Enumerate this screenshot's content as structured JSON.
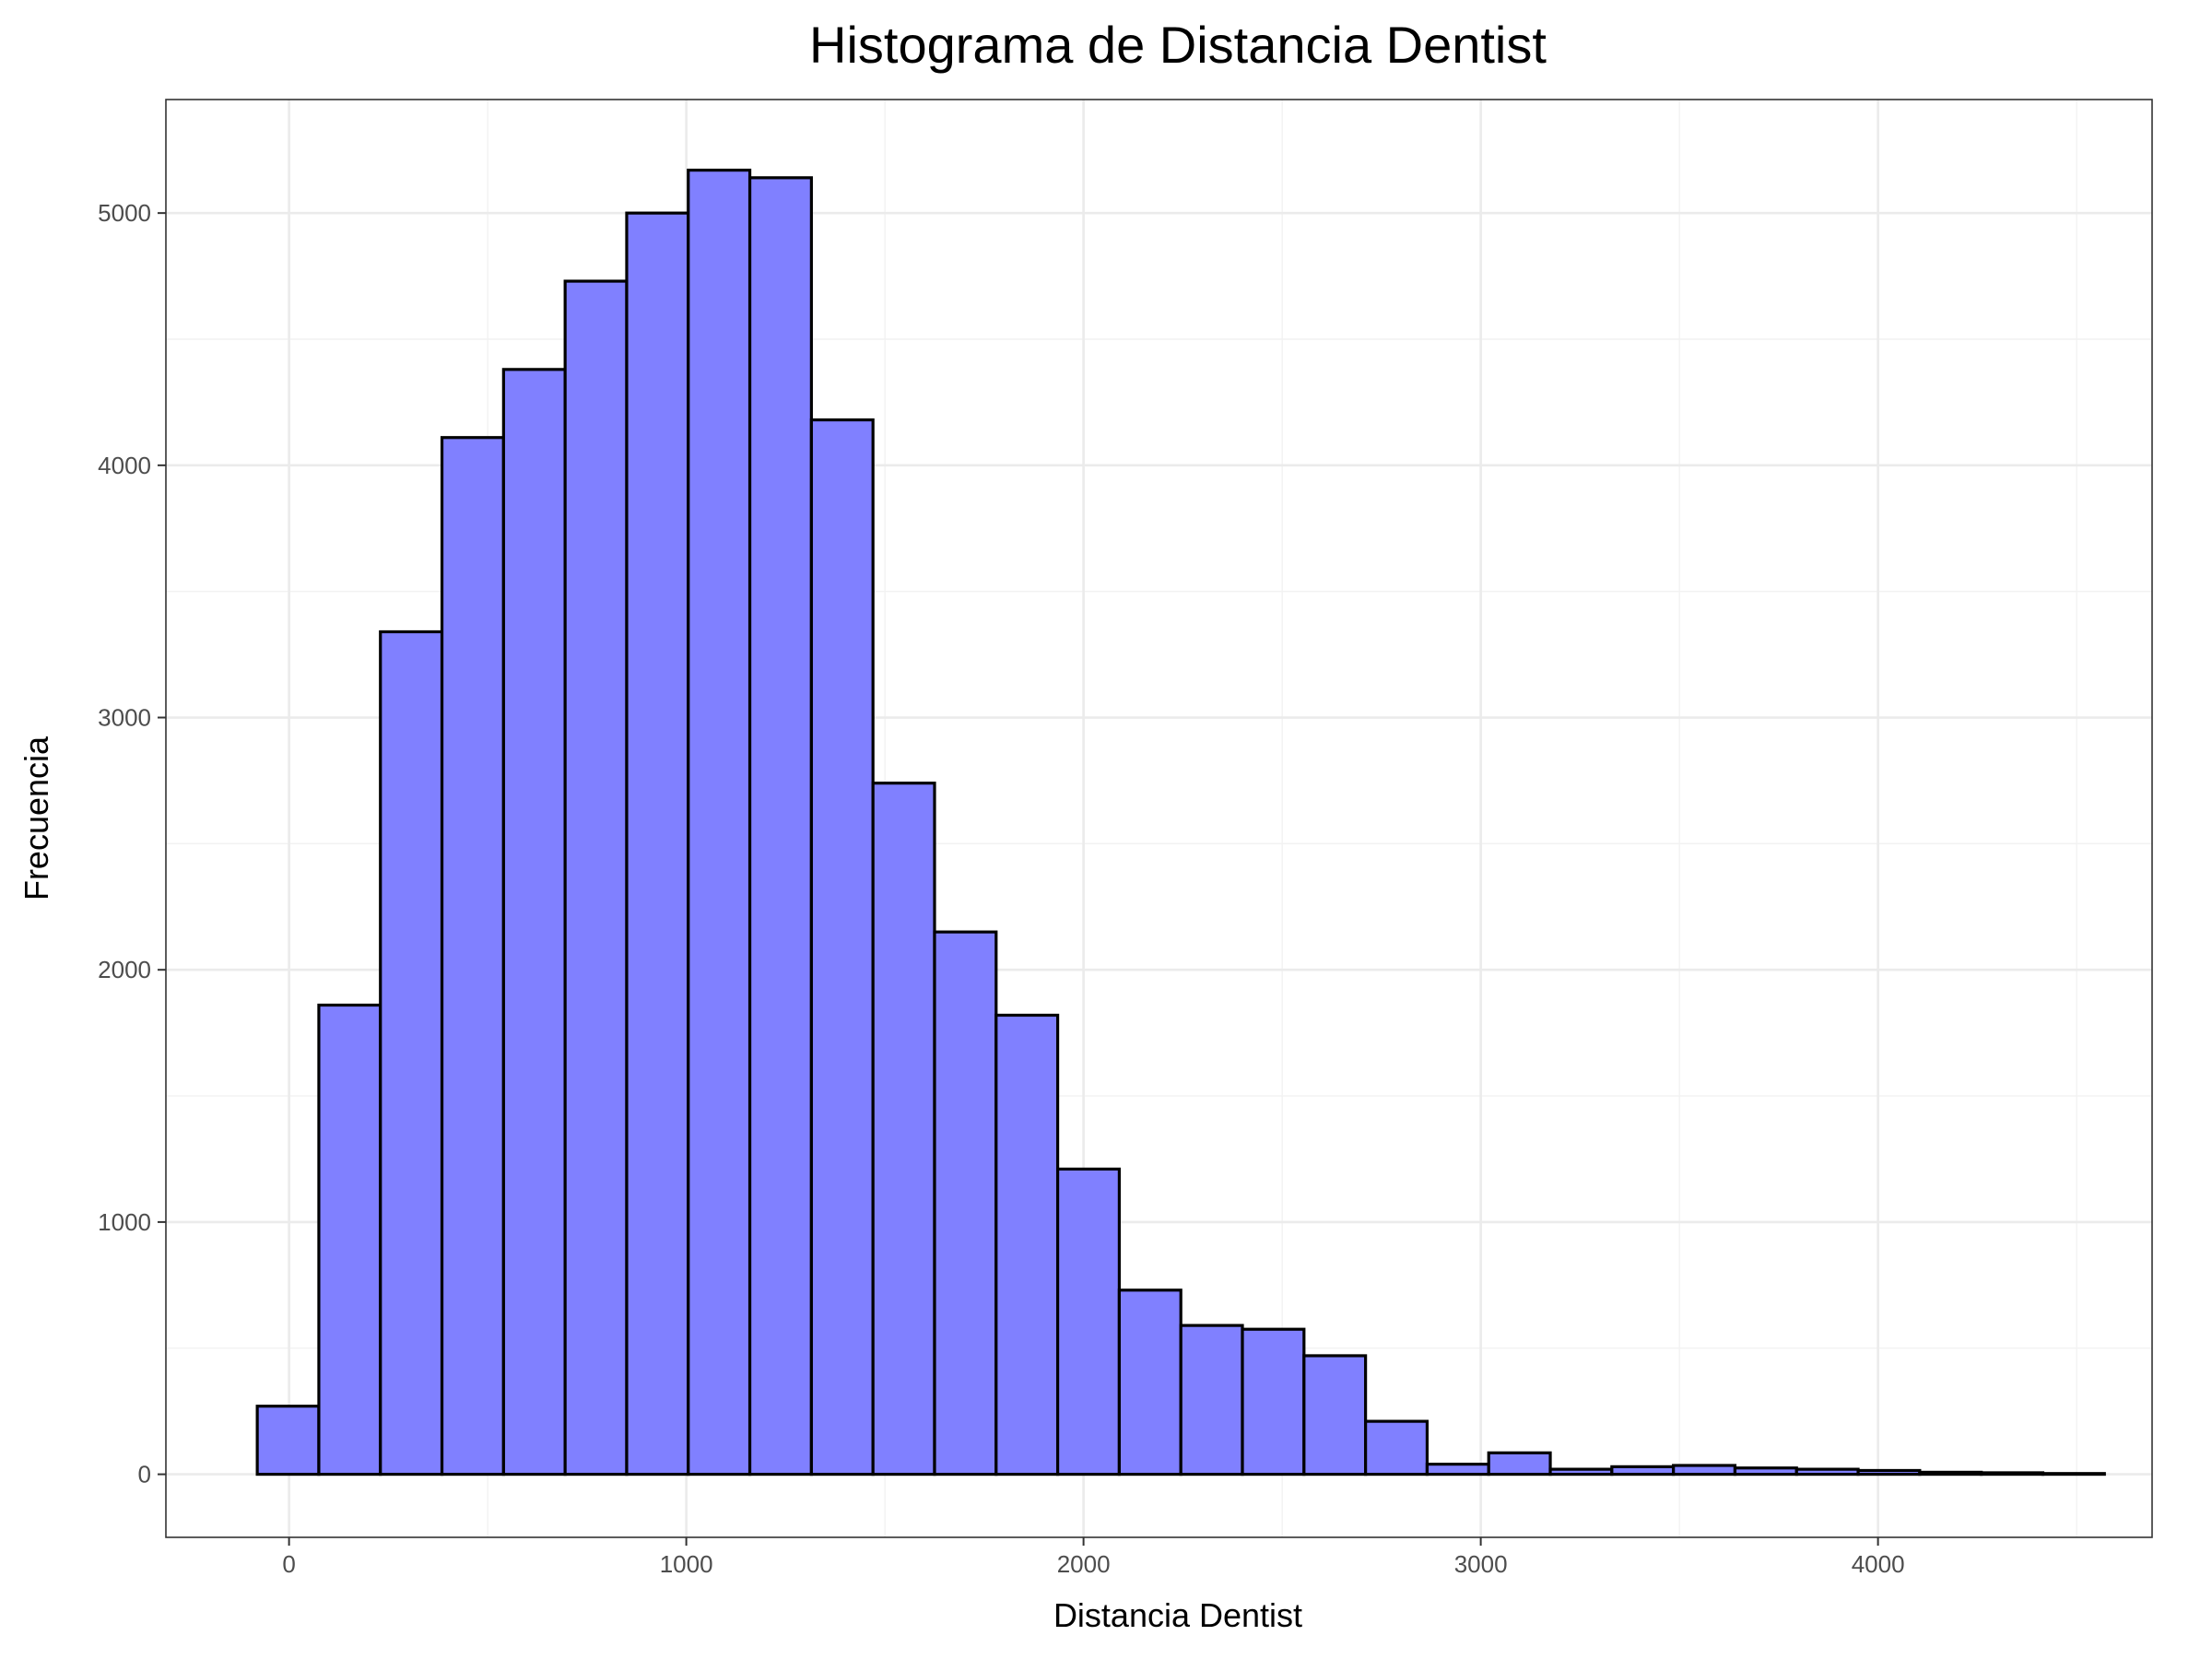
{
  "chart_data": {
    "type": "bar",
    "title": "Histograma de Distancia Dentist",
    "xlabel": "Distancia Dentist",
    "ylabel": "Frecuencia",
    "bar_color": "#8080ff",
    "bar_outline": "#000000",
    "grid": true,
    "legend": "none",
    "xlim": [
      -310,
      4690
    ],
    "ylim": [
      -250,
      5450
    ],
    "x_ticks": [
      0,
      1000,
      2000,
      3000,
      4000
    ],
    "x_tick_labels": [
      "0",
      "1000",
      "2000",
      "3000",
      "4000"
    ],
    "y_ticks": [
      0,
      1000,
      2000,
      3000,
      4000,
      5000
    ],
    "y_tick_labels": [
      "0",
      "1000",
      "2000",
      "3000",
      "4000",
      "5000"
    ],
    "bins": [
      {
        "x0": -80,
        "x1": 75,
        "count": 270
      },
      {
        "x0": 75,
        "x1": 230,
        "count": 1860
      },
      {
        "x0": 230,
        "x1": 385,
        "count": 3340
      },
      {
        "x0": 385,
        "x1": 540,
        "count": 4110
      },
      {
        "x0": 540,
        "x1": 695,
        "count": 4380
      },
      {
        "x0": 695,
        "x1": 850,
        "count": 4730
      },
      {
        "x0": 850,
        "x1": 1005,
        "count": 5000
      },
      {
        "x0": 1005,
        "x1": 1160,
        "count": 5170
      },
      {
        "x0": 1160,
        "x1": 1315,
        "count": 5140
      },
      {
        "x0": 1315,
        "x1": 1470,
        "count": 4180
      },
      {
        "x0": 1470,
        "x1": 1625,
        "count": 2740
      },
      {
        "x0": 1625,
        "x1": 1780,
        "count": 2150
      },
      {
        "x0": 1780,
        "x1": 1935,
        "count": 1820
      },
      {
        "x0": 1935,
        "x1": 2090,
        "count": 1210
      },
      {
        "x0": 2090,
        "x1": 2245,
        "count": 730
      },
      {
        "x0": 2245,
        "x1": 2400,
        "count": 590
      },
      {
        "x0": 2400,
        "x1": 2555,
        "count": 575
      },
      {
        "x0": 2555,
        "x1": 2710,
        "count": 470
      },
      {
        "x0": 2710,
        "x1": 2865,
        "count": 210
      },
      {
        "x0": 2865,
        "x1": 3020,
        "count": 40
      },
      {
        "x0": 3020,
        "x1": 3175,
        "count": 85
      },
      {
        "x0": 3175,
        "x1": 3330,
        "count": 20
      },
      {
        "x0": 3330,
        "x1": 3485,
        "count": 30
      },
      {
        "x0": 3485,
        "x1": 3640,
        "count": 35
      },
      {
        "x0": 3640,
        "x1": 3795,
        "count": 25
      },
      {
        "x0": 3795,
        "x1": 3950,
        "count": 20
      },
      {
        "x0": 3950,
        "x1": 4105,
        "count": 15
      },
      {
        "x0": 4105,
        "x1": 4260,
        "count": 8
      },
      {
        "x0": 4260,
        "x1": 4415,
        "count": 6
      },
      {
        "x0": 4415,
        "x1": 4570,
        "count": 3
      }
    ]
  }
}
